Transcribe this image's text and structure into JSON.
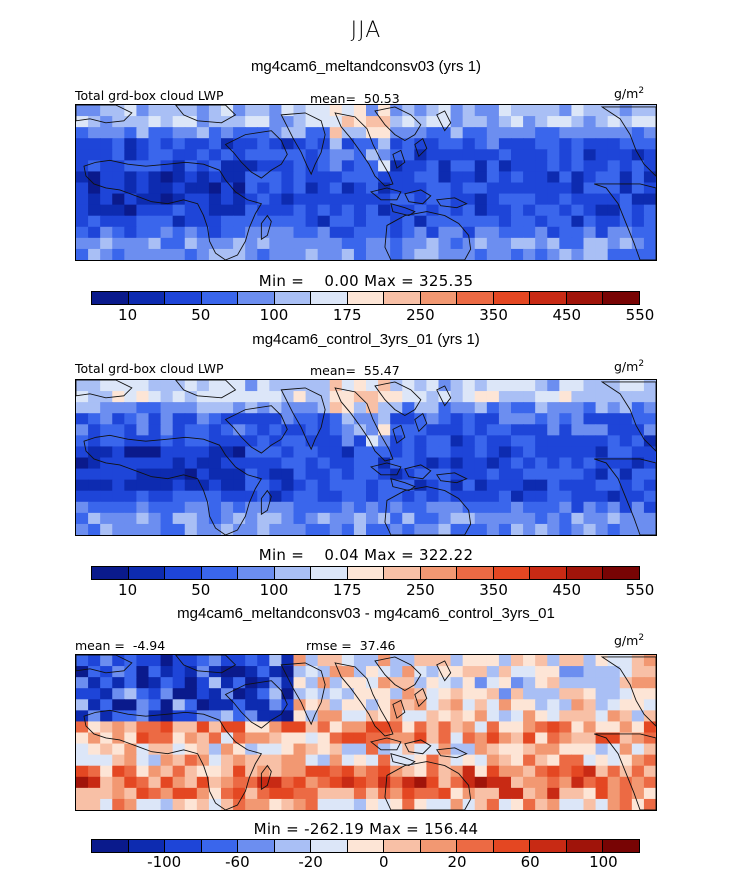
{
  "season": "JJA",
  "units_base": "g/m",
  "units_exp": "2",
  "panels": [
    {
      "title": "mg4cam6_meltandconsv03 (yrs 1)",
      "variable": "Total grd-box cloud LWP",
      "mean_label": "mean=",
      "mean_value": "50.53",
      "minmax": "Min =    0.00 Max = 325.35",
      "cbar_labels": [
        "10",
        "50",
        "100",
        "175",
        "250",
        "350",
        "450",
        "550"
      ],
      "scheme": "field"
    },
    {
      "title": "mg4cam6_control_3yrs_01 (yrs 1)",
      "variable": "Total grd-box cloud LWP",
      "mean_label": "mean=",
      "mean_value": "55.47",
      "minmax": "Min =    0.04 Max = 322.22",
      "cbar_labels": [
        "10",
        "50",
        "100",
        "175",
        "250",
        "350",
        "450",
        "550"
      ],
      "scheme": "field"
    },
    {
      "title": "mg4cam6_meltandconsv03 - mg4cam6_control_3yrs_01",
      "mean_label": "mean =",
      "mean_value": "-4.94",
      "rmse_label": "rmse =",
      "rmse_value": "37.46",
      "minmax": "Min = -262.19 Max = 156.44",
      "cbar_labels": [
        "-100",
        "-60",
        "-20",
        "0",
        "20",
        "60",
        "100"
      ],
      "scheme": "diff"
    }
  ],
  "colors": {
    "scale": [
      "#0a1a8c",
      "#0d2bb0",
      "#1e45d8",
      "#3a66ec",
      "#6c8ef0",
      "#a9bff5",
      "#dce6f8",
      "#fde5d6",
      "#f8c0a6",
      "#f29872",
      "#ec6a44",
      "#e44722",
      "#c82a14",
      "#a0140a",
      "#780404"
    ],
    "land_line": "#111111"
  }
}
